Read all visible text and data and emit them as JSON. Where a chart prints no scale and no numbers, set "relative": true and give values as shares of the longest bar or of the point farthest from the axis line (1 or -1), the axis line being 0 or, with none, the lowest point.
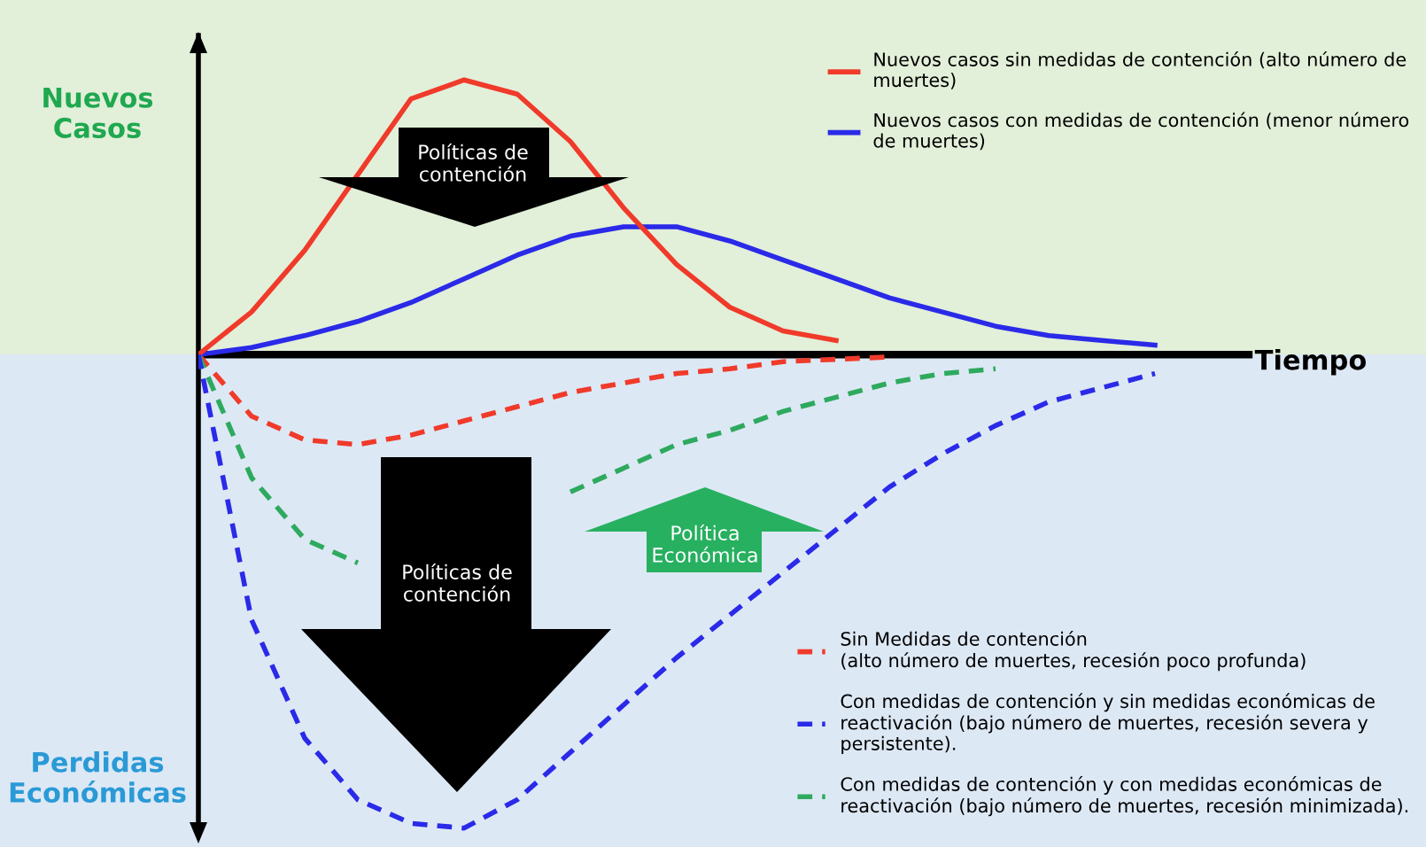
{
  "chart_data": {
    "type": "line",
    "relative": true,
    "xlabel": "Tiempo",
    "legend": "right",
    "categories": [
      null,
      null,
      null,
      null,
      null,
      null,
      null,
      null,
      null,
      null,
      null,
      null,
      null,
      null,
      null,
      null,
      null,
      null,
      null,
      null,
      null,
      null,
      null
    ],
    "series": [
      {
        "name": "Nuevos casos sin medidas de contención (alto número de\nmuertes)",
        "color": "#f03a2a",
        "line_style": "solid",
        "values": [
          0,
          0.09,
          0.22,
          0.38,
          0.54,
          0.58,
          0.55,
          0.45,
          0.31,
          0.19,
          0.1,
          0.05,
          0.03,
          null,
          null,
          null,
          null,
          null,
          null,
          null,
          null,
          null,
          null
        ]
      },
      {
        "name": "Nuevos casos con medidas de contención (menor número\nde muertes)",
        "color": "#2a2ae8",
        "line_style": "solid",
        "values": [
          0,
          0.015,
          0.04,
          0.07,
          0.11,
          0.16,
          0.21,
          0.25,
          0.27,
          0.27,
          0.24,
          0.2,
          0.16,
          0.12,
          0.09,
          0.06,
          0.04,
          0.03,
          0.02,
          null,
          null,
          null,
          null
        ]
      },
      {
        "name": "Sin Medidas de contención\n(alto número de muertes, recesión poco profunda)",
        "color": "#f03a2a",
        "line_style": "dashed",
        "values": [
          0,
          -0.13,
          -0.18,
          -0.19,
          -0.17,
          -0.14,
          -0.11,
          -0.08,
          -0.06,
          -0.04,
          -0.03,
          -0.015,
          -0.01,
          -0.005,
          null,
          null,
          null,
          null,
          null,
          null,
          null,
          null,
          null
        ]
      },
      {
        "name": "Con medidas de contención y sin medidas económicas de\nreactivación (bajo número de muertes, recesión severa y\npersistente).",
        "color": "#2a2ae8",
        "line_style": "dashed",
        "values": [
          0,
          -0.56,
          -0.81,
          -0.94,
          -0.99,
          -1,
          -0.94,
          -0.84,
          -0.74,
          -0.64,
          -0.55,
          -0.46,
          -0.37,
          -0.28,
          -0.21,
          -0.15,
          -0.1,
          -0.07,
          -0.04,
          null,
          null,
          null,
          null
        ]
      },
      {
        "name": "Con medidas de contención y con medidas económicas de\nreactivación (bajo número de muertes, recesión minimizada).",
        "color": "#2eaa5e",
        "line_style": "dashed",
        "values": [
          0,
          -0.26,
          -0.39,
          -0.44,
          null,
          null,
          null,
          -0.29,
          -0.24,
          -0.19,
          -0.16,
          -0.12,
          -0.09,
          -0.06,
          -0.04,
          -0.03,
          null,
          null,
          null,
          null,
          null,
          null,
          null
        ]
      }
    ],
    "annotations": [
      "Nuevos\nCasos",
      "Perdidas\nEconómicas",
      "Políticas de\ncontención",
      "Políticas de\ncontención",
      "Política\nEconómica"
    ]
  }
}
